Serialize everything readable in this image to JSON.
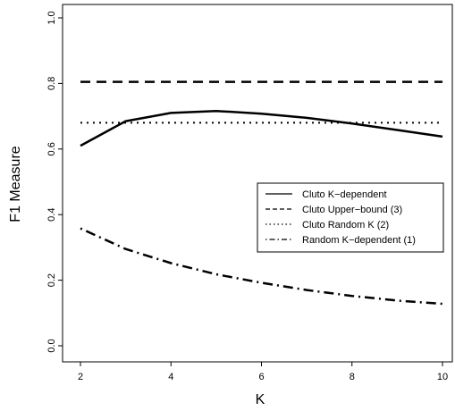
{
  "chart_data": {
    "type": "line",
    "xlabel": "K",
    "ylabel": "F1 Measure",
    "xlim": [
      2,
      10
    ],
    "ylim": [
      0.0,
      1.0
    ],
    "x_ticks": [
      "2",
      "4",
      "6",
      "8",
      "10"
    ],
    "y_ticks": [
      "0.0",
      "0.2",
      "0.4",
      "0.6",
      "0.8",
      "1.0"
    ],
    "grid": false,
    "legend_position": "right-center",
    "x": [
      2,
      3,
      4,
      5,
      6,
      7,
      8,
      9,
      10
    ],
    "series": [
      {
        "name": "Cluto K−dependent",
        "line_style": "solid",
        "line_width": 2.5,
        "values": [
          0.61,
          0.685,
          0.71,
          0.716,
          0.708,
          0.695,
          0.678,
          0.658,
          0.638
        ]
      },
      {
        "name": "Cluto Upper−bound (3)",
        "line_style": "dashed",
        "line_width": 2.5,
        "values": [
          0.805,
          0.805,
          0.805,
          0.805,
          0.805,
          0.805,
          0.805,
          0.805,
          0.805
        ]
      },
      {
        "name": "Cluto Random K (2)",
        "line_style": "dotted",
        "line_width": 2,
        "values": [
          0.68,
          0.68,
          0.68,
          0.68,
          0.68,
          0.68,
          0.68,
          0.68,
          0.68
        ]
      },
      {
        "name": "Random K−dependent (1)",
        "line_style": "dotdash",
        "line_width": 2.5,
        "values": [
          0.358,
          0.295,
          0.252,
          0.218,
          0.192,
          0.17,
          0.152,
          0.138,
          0.128
        ]
      }
    ],
    "colors": {
      "line": "#000000",
      "background": "#ffffff"
    }
  }
}
